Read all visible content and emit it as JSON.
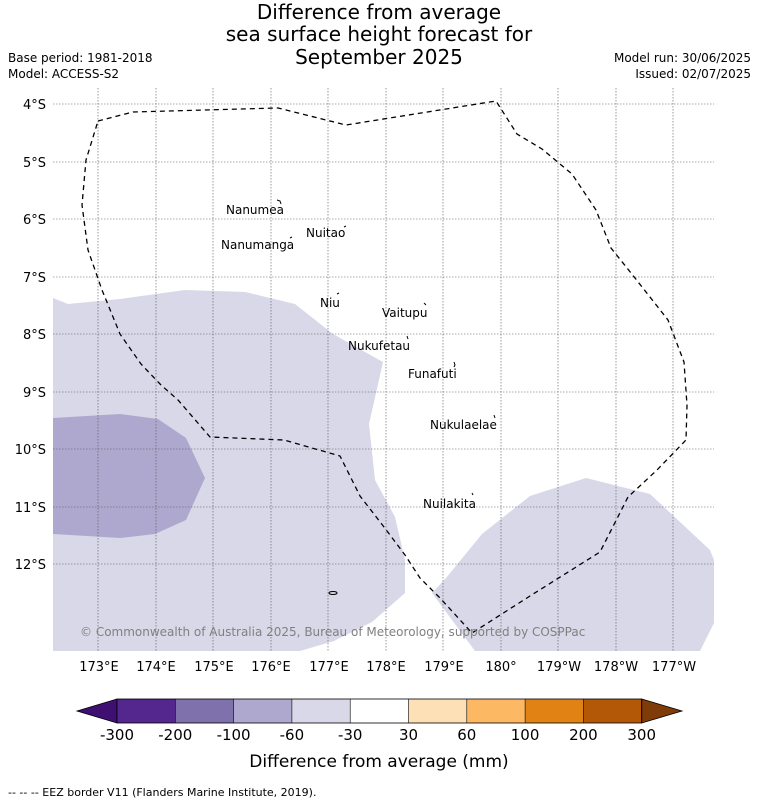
{
  "title_lines": [
    "Difference from average",
    "sea surface height forecast for",
    "September 2025"
  ],
  "meta": {
    "base_period": "Base period: 1981-2018",
    "model": "Model: ACCESS-S2",
    "model_run": "Model run: 30/06/2025",
    "issued": "Issued: 02/07/2025"
  },
  "map": {
    "lat_labels": [
      "4°S",
      "5°S",
      "6°S",
      "7°S",
      "8°S",
      "9°S",
      "10°S",
      "11°S",
      "12°S"
    ],
    "lon_labels": [
      "173°E",
      "174°E",
      "175°E",
      "176°E",
      "177°E",
      "178°E",
      "179°E",
      "180°",
      "179°W",
      "178°W",
      "177°W"
    ],
    "islands": [
      {
        "name": "Nanumea"
      },
      {
        "name": "Nuitao"
      },
      {
        "name": "Nanumanga"
      },
      {
        "name": "Niu"
      },
      {
        "name": "Vaitupu"
      },
      {
        "name": "Nukufetau"
      },
      {
        "name": "Funafuti"
      },
      {
        "name": "Nukulaelae"
      },
      {
        "name": "Nuilakita"
      }
    ],
    "copyright": "© Commonwealth of Australia 2025, Bureau of Meteorology, supported by COSPPac"
  },
  "colorbar": {
    "ticks": [
      "-300",
      "-200",
      "-100",
      "-60",
      "-30",
      "30",
      "60",
      "100",
      "200",
      "300"
    ],
    "colors": [
      "#3f0f72",
      "#54278f",
      "#7f72ac",
      "#aea8cf",
      "#d8d8e8",
      "#ffffff",
      "#fee0b6",
      "#fdb863",
      "#e08214",
      "#b35806",
      "#7f3b08"
    ],
    "label": "Difference from average (mm)"
  },
  "footnote": "--  --  -- EEZ border V11 (Flanders Marine Institute, 2019)."
}
